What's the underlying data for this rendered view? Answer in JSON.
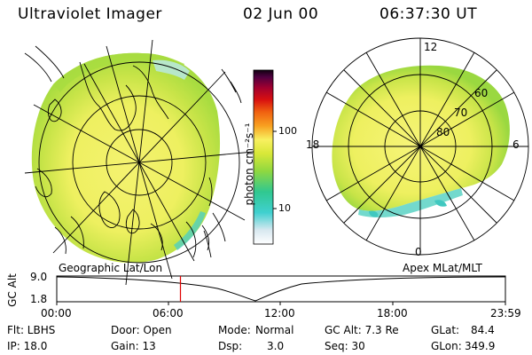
{
  "header": {
    "instrument": "Ultraviolet Imager",
    "date": "02 Jun 00",
    "time": "06:37:30 UT"
  },
  "colorbar": {
    "label": "photon cm⁻²s⁻¹",
    "ticks": [
      "100",
      "10"
    ]
  },
  "geo_map": {
    "label": "Geographic Lat/Lon"
  },
  "mag_map": {
    "label": "Apex MLat/MLT",
    "mlt_labels": {
      "top": "12",
      "left": "18",
      "right": "6",
      "bottom": "0"
    },
    "lat_labels": [
      "60",
      "70",
      "80"
    ]
  },
  "timeline": {
    "y_label": "GC Alt",
    "y_ticks": [
      "9.0",
      "1.8"
    ],
    "x_ticks": [
      "00:00",
      "06:00",
      "12:00",
      "18:00",
      "23:59"
    ],
    "current_time_fraction": 0.2757
  },
  "info": {
    "filter": "Flt: LBHS",
    "ip": "IP: 18.0",
    "door": "Door: Open",
    "gain": "Gain: 13",
    "mode_label": "Mode:",
    "mode_value": "Normal",
    "dsp_label": "Dsp:",
    "dsp_value": "3.0",
    "gc_alt": "GC Alt: 7.3 Re",
    "seq": "Seq: 30",
    "glat_label": "GLat:",
    "glat_value": "84.4",
    "glon_label": "GLon:",
    "glon_value": "349.9"
  },
  "colors": {
    "aurora_yellow": "#eef060",
    "aurora_green": "#b8e040",
    "aurora_cyan": "#40d0c0",
    "marker": "#e00000"
  }
}
